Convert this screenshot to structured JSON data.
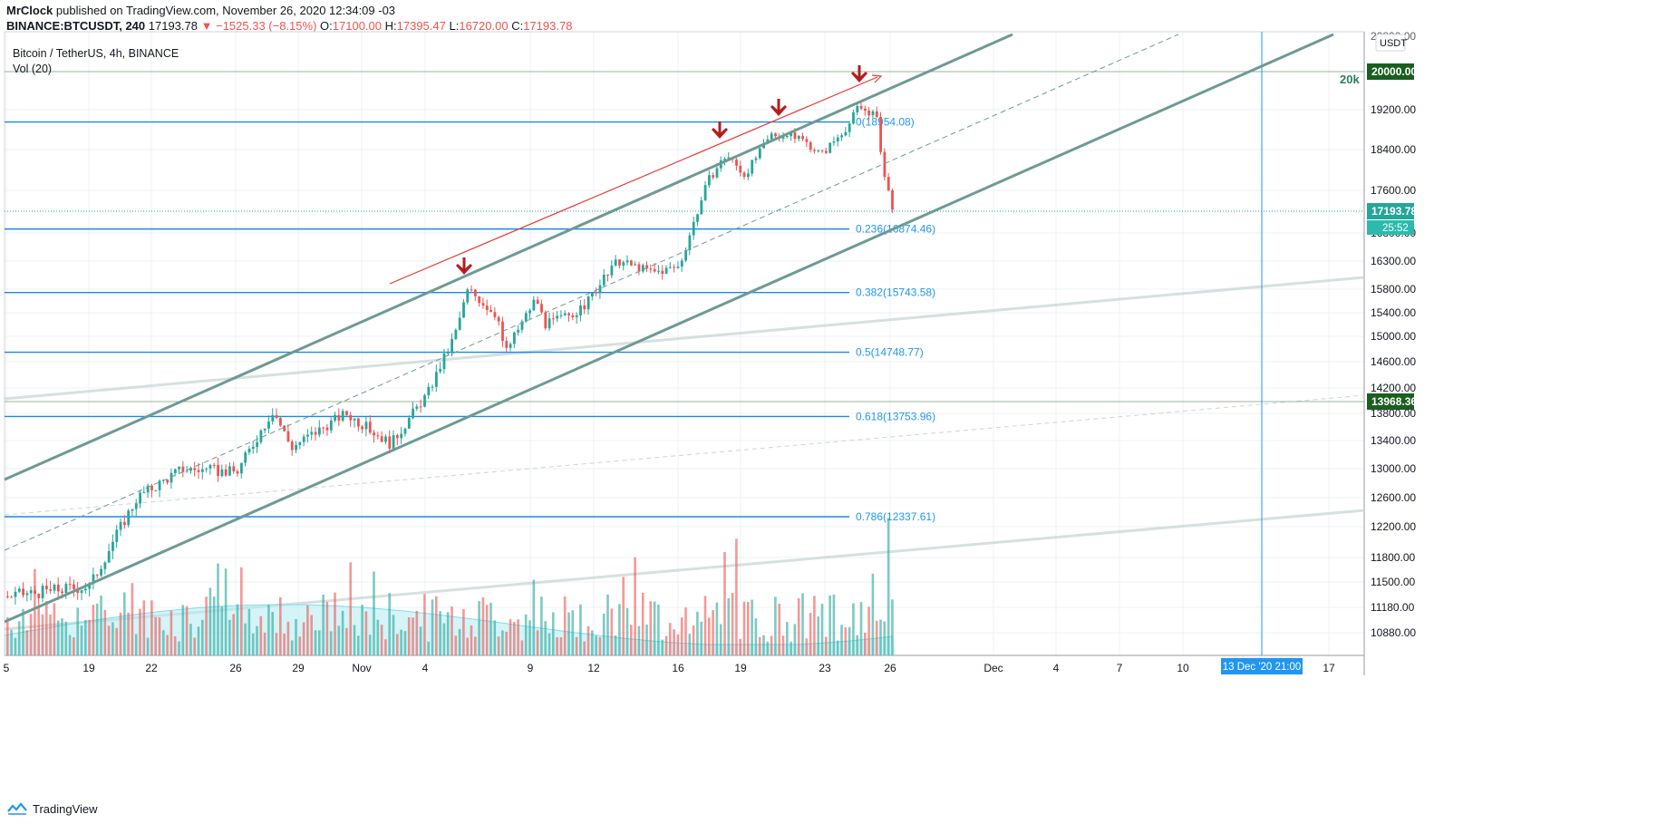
{
  "header": {
    "author": "MrClock",
    "published": "published on TradingView.com, November 26, 2020 12:34:09 -03",
    "symbol": "BINANCE:BTCUSDT, 240",
    "last": "17193.78",
    "change": "▼ −1525.33 (−8.15%)",
    "o_label": "O:",
    "o": "17100.00",
    "h_label": "H:",
    "h": "17395.47",
    "l_label": "L:",
    "l": "16720.00",
    "c_label": "C:",
    "c": "17193.78"
  },
  "legend": {
    "title": "Bitcoin / TetherUS, 4h, BINANCE",
    "volume": "Vol (20)"
  },
  "footer": {
    "brand": "TradingView"
  },
  "colors": {
    "up": "#26a69a",
    "down": "#ef5350",
    "fib": "#1e88e5",
    "channel": "#6e9a94",
    "arrow": "#b71c1c",
    "price_badge": "#26a69a",
    "level_badge": "#1b5e20"
  },
  "chart_data": {
    "type": "candlestick",
    "symbol": "BINANCE:BTCUSDT",
    "timeframe": "4h",
    "currency": "USDT",
    "y_ticks": [
      "10880.00",
      "11180.00",
      "11500.00",
      "11800.00",
      "12200.00",
      "12600.00",
      "13000.00",
      "13400.00",
      "13800.00",
      "14200.00",
      "14600.00",
      "15000.00",
      "15400.00",
      "15800.00",
      "16300.00",
      "16800.00",
      "17600.00",
      "18400.00",
      "19200.00",
      "20000.00"
    ],
    "x_ticks": [
      "5",
      "19",
      "22",
      "26",
      "29",
      "Nov",
      "4",
      "9",
      "12",
      "16",
      "19",
      "23",
      "26",
      "Dec",
      "4",
      "7",
      "10",
      "13 Dec '20  21:00",
      "17"
    ],
    "price_labels": {
      "current": "17193.78",
      "countdown": "25:52",
      "level_20k": "20000.00",
      "level_20k_text": "20k",
      "level_low": "13968.36",
      "cursor_time": "13 Dec '20  21:00"
    },
    "fib_levels": [
      {
        "label": "0.236(16874.46)",
        "value": 16874.46
      },
      {
        "label": "0.382(15743.58)",
        "value": 15743.58
      },
      {
        "label": "0.5(14748.77)",
        "value": 14748.77
      },
      {
        "label": "0.618(13753.96)",
        "value": 13753.96
      },
      {
        "label": "0.786(12337.61)",
        "value": 12337.61
      }
    ],
    "fib_top": {
      "label": "0(18954.08)",
      "value": 18954.08
    },
    "ohlc_last": {
      "open": 17100.0,
      "high": 17395.47,
      "low": 16720.0,
      "close": 17193.78
    },
    "change": -1525.33,
    "change_pct": -8.15
  }
}
